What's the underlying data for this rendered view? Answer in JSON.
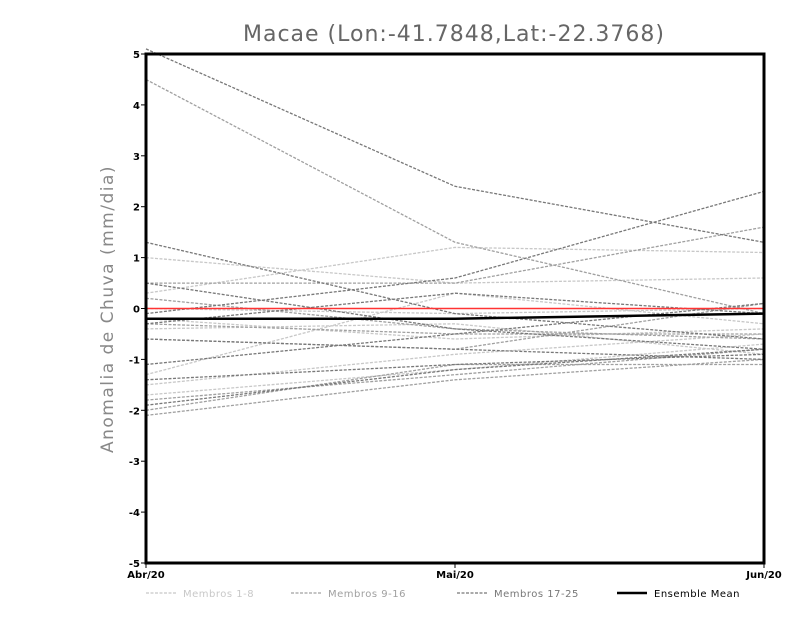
{
  "chart_data": {
    "type": "line",
    "title": "Macae (Lon:-41.7848,Lat:-22.3768)",
    "xlabel": "",
    "ylabel": "Anomalia de Chuva (mm/dia)",
    "categories": [
      "Abr/20",
      "Mai/20",
      "Jun/20"
    ],
    "ylim": [
      -5,
      5
    ],
    "yticks": [
      "5",
      "4",
      "3",
      "2",
      "1",
      "0",
      "-1",
      "-2",
      "-3",
      "-4",
      "-5"
    ],
    "reference_line": {
      "value": 0,
      "color": "#ff3333"
    },
    "groups": [
      {
        "name": "Membros 1-8",
        "color": "#c8c8c8"
      },
      {
        "name": "Membros 9-16",
        "color": "#a0a0a0"
      },
      {
        "name": "Membros 17-25",
        "color": "#787878"
      }
    ],
    "series": [
      {
        "name": "Membro 1",
        "group": 0,
        "values": [
          1.0,
          0.5,
          0.6
        ]
      },
      {
        "name": "Membro 2",
        "group": 0,
        "values": [
          0.3,
          1.2,
          1.1
        ]
      },
      {
        "name": "Membro 3",
        "group": 0,
        "values": [
          -0.2,
          -0.6,
          -0.4
        ]
      },
      {
        "name": "Membro 4",
        "group": 0,
        "values": [
          -1.3,
          0.3,
          -0.3
        ]
      },
      {
        "name": "Membro 5",
        "group": 0,
        "values": [
          -1.5,
          -0.9,
          -0.5
        ]
      },
      {
        "name": "Membro 6",
        "group": 0,
        "values": [
          -1.7,
          -1.2,
          -0.7
        ]
      },
      {
        "name": "Membro 7",
        "group": 0,
        "values": [
          -0.4,
          -0.3,
          -0.9
        ]
      },
      {
        "name": "Membro 8",
        "group": 0,
        "values": [
          0.0,
          -0.1,
          0.0
        ]
      },
      {
        "name": "Membro 9",
        "group": 1,
        "values": [
          4.5,
          1.3,
          -0.1
        ]
      },
      {
        "name": "Membro 10",
        "group": 1,
        "values": [
          0.5,
          0.5,
          1.6
        ]
      },
      {
        "name": "Membro 11",
        "group": 1,
        "values": [
          -0.3,
          -0.5,
          -0.5
        ]
      },
      {
        "name": "Membro 12",
        "group": 1,
        "values": [
          -1.8,
          -1.3,
          -0.8
        ]
      },
      {
        "name": "Membro 13",
        "group": 1,
        "values": [
          -2.1,
          -1.4,
          -1.0
        ]
      },
      {
        "name": "Membro 14",
        "group": 1,
        "values": [
          0.2,
          -0.4,
          -0.6
        ]
      },
      {
        "name": "Membro 15",
        "group": 1,
        "values": [
          -0.6,
          -0.8,
          0.1
        ]
      },
      {
        "name": "Membro 16",
        "group": 1,
        "values": [
          -2.0,
          -1.1,
          -1.1
        ]
      },
      {
        "name": "Membro 17",
        "group": 2,
        "values": [
          5.1,
          2.4,
          1.3
        ]
      },
      {
        "name": "Membro 18",
        "group": 2,
        "values": [
          1.3,
          -0.1,
          -0.6
        ]
      },
      {
        "name": "Membro 19",
        "group": 2,
        "values": [
          -0.1,
          0.6,
          2.3
        ]
      },
      {
        "name": "Membro 20",
        "group": 2,
        "values": [
          0.5,
          -0.4,
          -0.8
        ]
      },
      {
        "name": "Membro 21",
        "group": 2,
        "values": [
          -1.1,
          -0.5,
          0.1
        ]
      },
      {
        "name": "Membro 22",
        "group": 2,
        "values": [
          -1.4,
          -1.1,
          -0.9
        ]
      },
      {
        "name": "Membro 23",
        "group": 2,
        "values": [
          -0.3,
          0.3,
          -0.1
        ]
      },
      {
        "name": "Membro 24",
        "group": 2,
        "values": [
          -0.6,
          -0.8,
          -1.0
        ]
      },
      {
        "name": "Membro 25",
        "group": 2,
        "values": [
          -1.9,
          -1.2,
          -0.8
        ]
      }
    ],
    "ensemble_mean": {
      "name": "Ensemble Mean",
      "color": "#000000",
      "values": [
        -0.2,
        -0.2,
        -0.1
      ]
    },
    "legend": {
      "placement": "bottom",
      "entries": [
        "Membros 1-8",
        "Membros 9-16",
        "Membros 17-25",
        "Ensemble Mean"
      ]
    }
  }
}
